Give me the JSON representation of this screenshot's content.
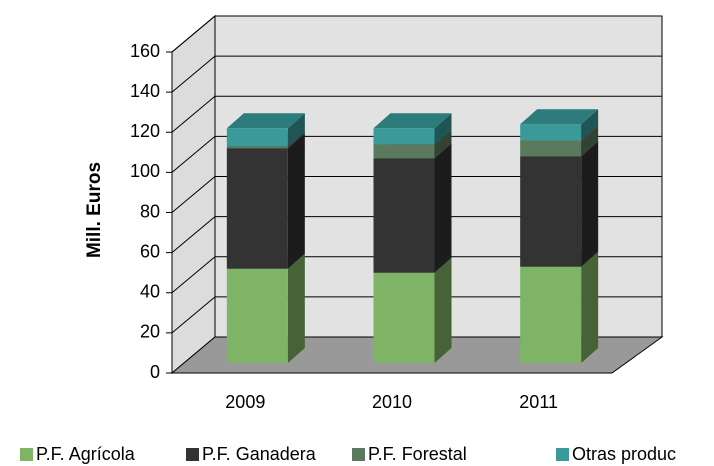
{
  "chart_data": {
    "type": "bar3d_stacked",
    "y_label": "Mill. Euros",
    "categories": [
      "2009",
      "2010",
      "2011"
    ],
    "series": [
      {
        "name": "P.F. Agrícola",
        "color": "#7fb466",
        "values": [
          47,
          45,
          48
        ]
      },
      {
        "name": "P.F. Ganadera",
        "color": "#333333",
        "values": [
          60,
          57,
          55
        ]
      },
      {
        "name": "P.F. Forestal",
        "color": "#5a7a5e",
        "values": [
          1,
          7,
          8
        ]
      },
      {
        "name": "Otras produc",
        "color": "#3a9a9a",
        "values": [
          9,
          8,
          8
        ]
      }
    ],
    "ylim": [
      0,
      160
    ],
    "yticks": [
      0,
      20,
      40,
      60,
      80,
      100,
      120,
      140,
      160
    ],
    "grid": true
  }
}
